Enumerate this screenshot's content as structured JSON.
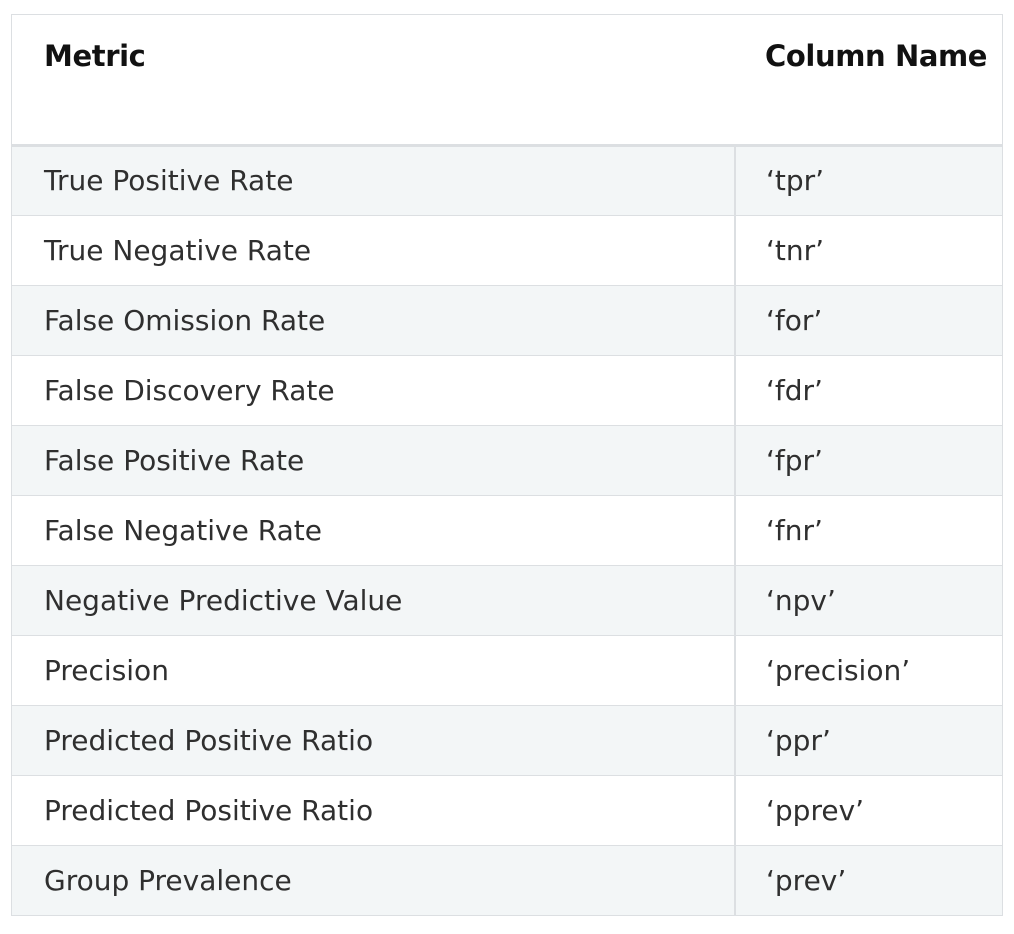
{
  "table": {
    "headers": {
      "metric": "Metric",
      "column_name": "Column Name"
    },
    "rows": [
      {
        "metric": "True Positive Rate",
        "column": "‘tpr’"
      },
      {
        "metric": "True Negative Rate",
        "column": "‘tnr’"
      },
      {
        "metric": "False Omission Rate",
        "column": "‘for’"
      },
      {
        "metric": "False Discovery Rate",
        "column": "‘fdr’"
      },
      {
        "metric": "False Positive Rate",
        "column": "‘fpr’"
      },
      {
        "metric": "False Negative Rate",
        "column": "‘fnr’"
      },
      {
        "metric": "Negative Predictive Value",
        "column": "‘npv’"
      },
      {
        "metric": "Precision",
        "column": "‘precision’"
      },
      {
        "metric": "Predicted Positive Ratio",
        "column": "‘ppr’"
      },
      {
        "metric": "Predicted Positive Ratio",
        "column": "‘pprev’"
      },
      {
        "metric": "Group Prevalence",
        "column": "‘prev’"
      }
    ]
  },
  "colors": {
    "header_text": "#111111",
    "body_text": "#2f2f2f",
    "stripe": "#f3f6f7",
    "border": "#dcdfe2"
  }
}
